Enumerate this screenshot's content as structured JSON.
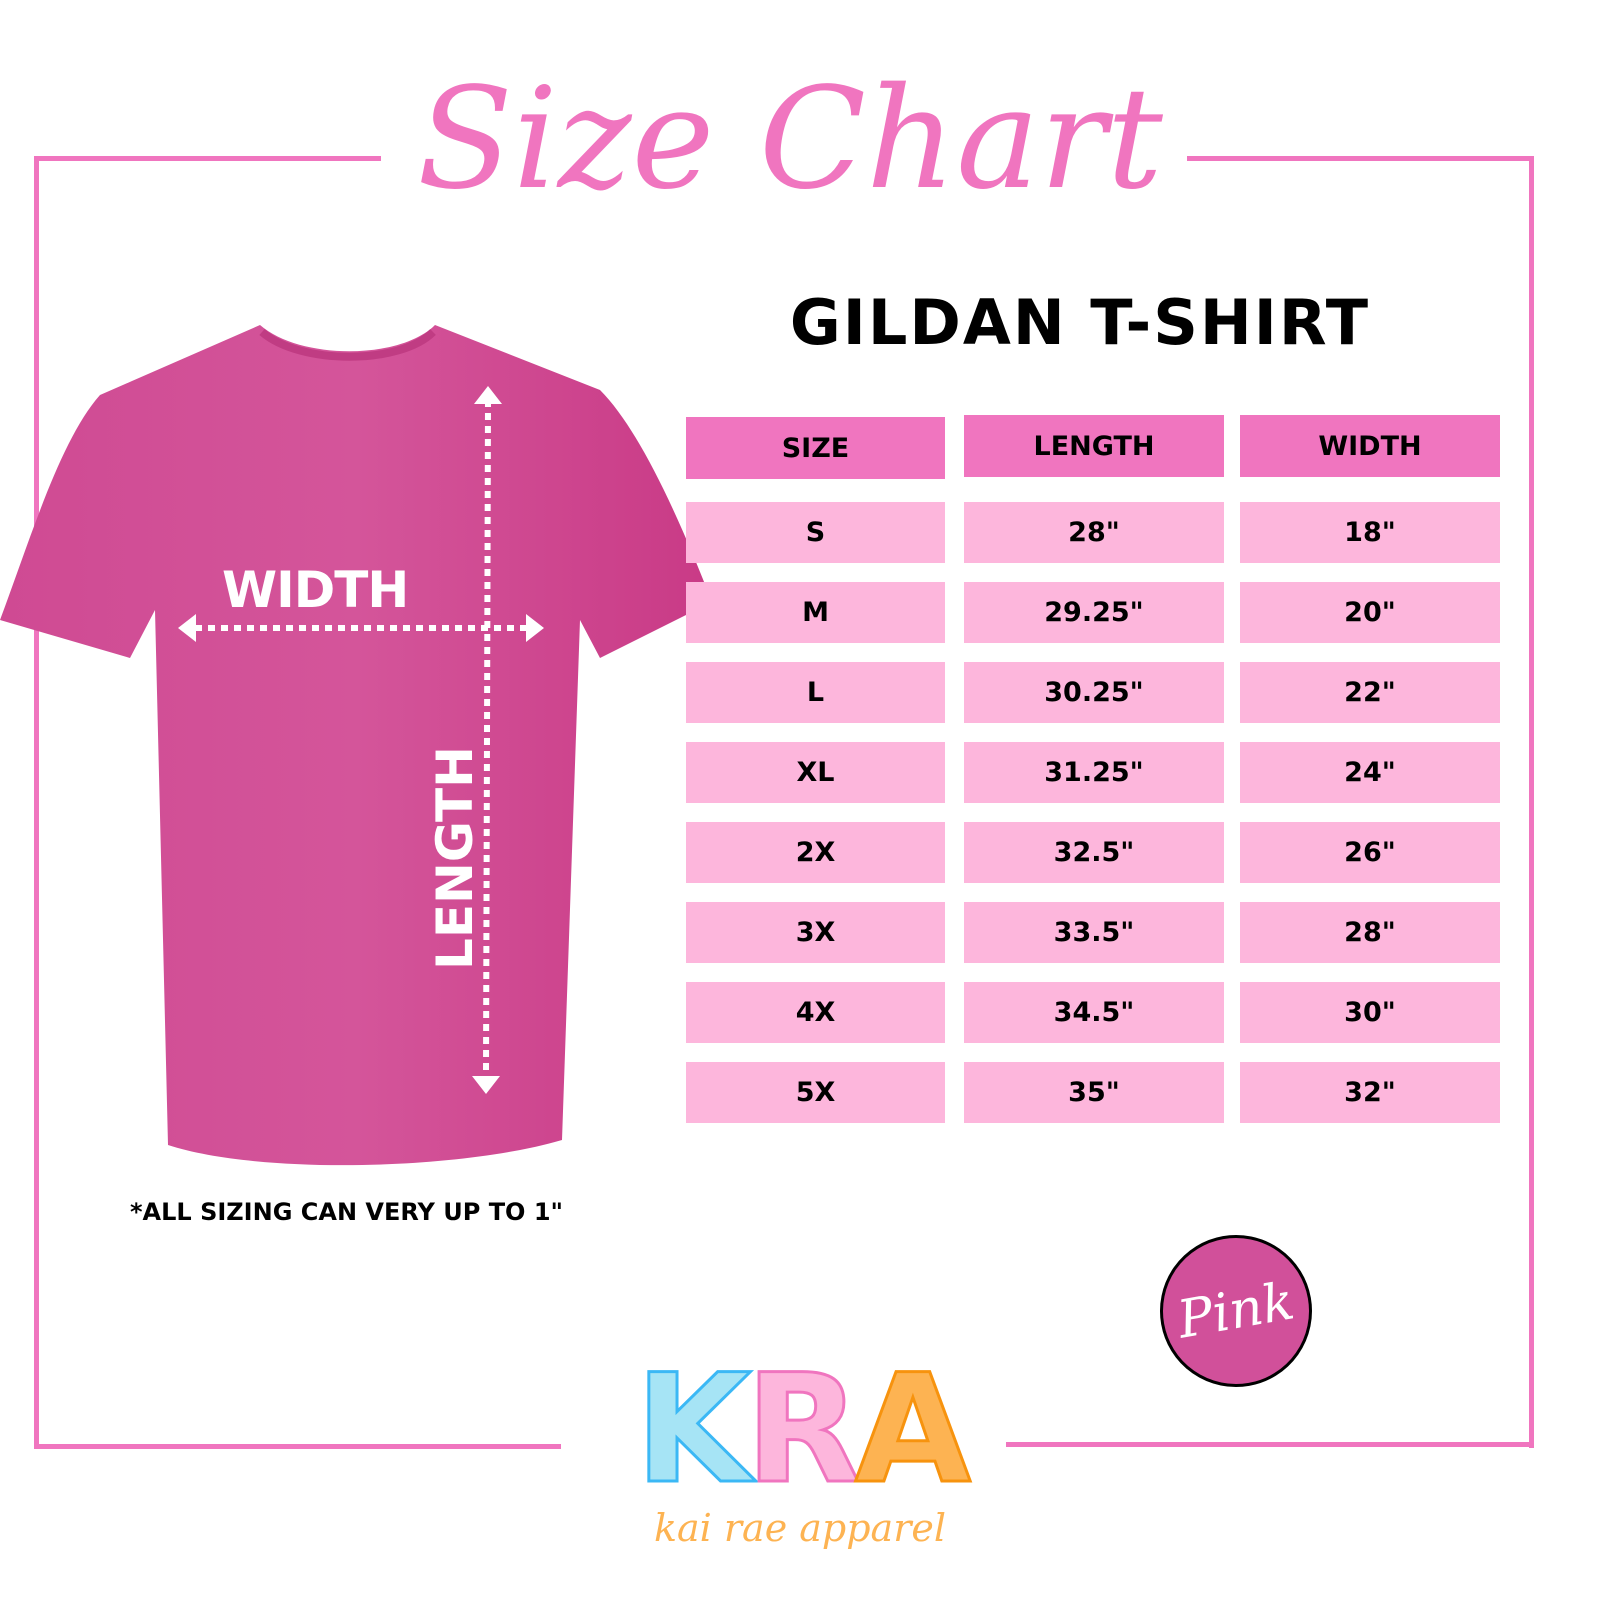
{
  "title": "Size Chart",
  "subtitle": "GILDAN T-SHIRT",
  "shirt": {
    "color": "#d1468f",
    "width_label": "WIDTH",
    "length_label": "LENGTH"
  },
  "table": {
    "headers": [
      "SIZE",
      "LENGTH",
      "WIDTH"
    ],
    "rows": [
      [
        "S",
        "28\"",
        "18\""
      ],
      [
        "M",
        "29.25\"",
        "20\""
      ],
      [
        "L",
        "30.25\"",
        "22\""
      ],
      [
        "XL",
        "31.25\"",
        "24\""
      ],
      [
        "2X",
        "32.5\"",
        "26\""
      ],
      [
        "3X",
        "33.5\"",
        "28\""
      ],
      [
        "4X",
        "34.5\"",
        "30\""
      ],
      [
        "5X",
        "35\"",
        "32\""
      ]
    ],
    "header_color": "#f075bf",
    "row_color": "#fdb6dc"
  },
  "note": "*ALL SIZING CAN VERY UP TO 1\"",
  "color_badge": {
    "label": "Pink",
    "color": "#d1509a"
  },
  "logo": {
    "letters": [
      "K",
      "R",
      "A"
    ],
    "letter_colors": [
      "#a6e4f5",
      "#fdb6dc",
      "#fdb352"
    ],
    "tagline": "kai rae apparel"
  }
}
